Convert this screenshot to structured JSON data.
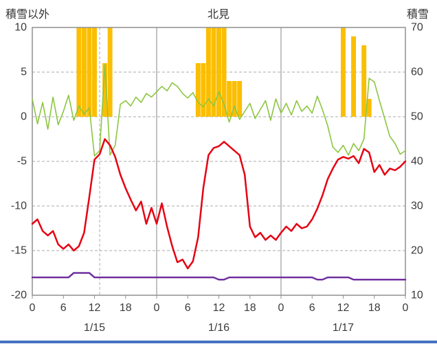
{
  "page": {
    "divider_color": "#4472C4"
  },
  "header": {
    "left_axis_title": "積雪以外",
    "station": "北見",
    "right_axis_title": "積雪"
  },
  "chart_data": {
    "type": "line",
    "title": "北見",
    "x_hours_range": [
      0,
      72
    ],
    "x_tick_hours": [
      0,
      6,
      12,
      18,
      24,
      30,
      36,
      42,
      48,
      54,
      60,
      66,
      72
    ],
    "x_tick_labels": [
      "0",
      "6",
      "12",
      "18",
      "0",
      "6",
      "12",
      "18",
      "0",
      "6",
      "12",
      "18",
      "0"
    ],
    "date_labels": [
      {
        "hour": 12,
        "label": "1/15"
      },
      {
        "hour": 36,
        "label": "1/16"
      },
      {
        "hour": 60,
        "label": "1/17"
      }
    ],
    "left_axis": {
      "title": "積雪以外",
      "ticks": [
        10,
        5,
        0,
        -5,
        -10,
        -15,
        -20
      ],
      "range": [
        -20,
        10
      ]
    },
    "right_axis": {
      "title": "積雪",
      "ticks": [
        70,
        60,
        50,
        40,
        30,
        20,
        10
      ],
      "range": [
        10,
        70
      ]
    },
    "grid": {
      "h_dashed_at": [
        5,
        0,
        -5,
        -10,
        -15
      ],
      "v_solid_at_hours": [
        24,
        48
      ],
      "v_dashed_at_hours": [
        13
      ]
    },
    "colors": {
      "grid": "#aaaaaa",
      "grid_solid": "#9a9a9a",
      "border": "#8f8f8f",
      "text": "#3a3a3a"
    },
    "series": [
      {
        "name": "orange-bars",
        "type": "bar",
        "axis": "left",
        "color": "#FBBE00",
        "values": [
          0,
          0,
          0,
          0,
          0,
          0,
          0,
          0,
          0,
          10,
          10,
          10,
          10,
          0,
          6,
          10,
          0,
          0,
          0,
          0,
          0,
          0,
          0,
          0,
          0,
          0,
          0,
          0,
          0,
          0,
          0,
          0,
          6,
          6,
          10,
          10,
          10,
          10,
          4,
          4,
          4,
          0,
          0,
          0,
          0,
          0,
          0,
          0,
          0,
          0,
          0,
          0,
          0,
          0,
          0,
          0,
          0,
          0,
          0,
          0,
          10,
          0,
          9,
          0,
          8,
          2,
          0,
          0,
          0,
          0,
          0,
          0
        ]
      },
      {
        "name": "green-line",
        "type": "line",
        "axis": "left",
        "color": "#8CC63F",
        "width": 1.6,
        "values": [
          2,
          -0.8,
          1.6,
          -1.4,
          2.2,
          -0.9,
          0.6,
          2.4,
          -0.4,
          1.2,
          0.3,
          1,
          -4.4,
          -3.8,
          5.8,
          -4.3,
          -3.2,
          1.4,
          1.8,
          1.2,
          2.2,
          1.6,
          2.6,
          2.2,
          2.8,
          3.4,
          2.9,
          3.8,
          3.4,
          2.6,
          2.1,
          2.7,
          1.6,
          1.1,
          2,
          1.2,
          2.8,
          1.4,
          -0.6,
          1.2,
          -0.3,
          0.6,
          1.5,
          -0.2,
          0.8,
          1.8,
          -0.4,
          2,
          0.4,
          1.5,
          0.2,
          1.8,
          0.6,
          1.2,
          0.4,
          2.3,
          0.8,
          -1,
          -3.4,
          -4,
          -3.2,
          -4.3,
          -3,
          -3.8,
          -2.5,
          4.3,
          3.9,
          1.8,
          -0.2,
          -2.2,
          -3,
          -4.2,
          -3.8
        ]
      },
      {
        "name": "purple-line",
        "type": "line",
        "axis": "right",
        "color": "#7030A0",
        "width": 2.5,
        "values": [
          14,
          14,
          14,
          14,
          14,
          14,
          14,
          14,
          15,
          15,
          15,
          15,
          14,
          14,
          14,
          14,
          14,
          14,
          14,
          14,
          14,
          14,
          14,
          14,
          14,
          14,
          14,
          14,
          14,
          14,
          14,
          14,
          14,
          14,
          14,
          14,
          13.5,
          13.5,
          14,
          14,
          14,
          14,
          14,
          14,
          14,
          14,
          14,
          14,
          14,
          14,
          14,
          14,
          14,
          14,
          14,
          13.5,
          13.5,
          14,
          14,
          14,
          14,
          14,
          13.5,
          13.5,
          13.5,
          13.5,
          13.5,
          13.5,
          13.5,
          13.5,
          13.5,
          13.5,
          13.5
        ]
      },
      {
        "name": "red-line",
        "type": "line",
        "axis": "left",
        "color": "#E60012",
        "width": 2.5,
        "values": [
          -12,
          -11.5,
          -12.8,
          -13.3,
          -12.8,
          -14.3,
          -14.8,
          -14.3,
          -15,
          -14.5,
          -13,
          -9,
          -4.8,
          -4.2,
          -2.5,
          -3.2,
          -4.5,
          -6.5,
          -8,
          -9.3,
          -10.5,
          -9.5,
          -12,
          -10.2,
          -12,
          -9.7,
          -12.3,
          -14.5,
          -16.3,
          -16,
          -17,
          -16.2,
          -13.5,
          -8,
          -4.3,
          -3.5,
          -3.3,
          -2.8,
          -3.3,
          -3.8,
          -4.3,
          -6.5,
          -12.3,
          -13.5,
          -13,
          -13.8,
          -13.3,
          -13.8,
          -13,
          -12.3,
          -12.8,
          -12,
          -12.5,
          -12.3,
          -11.5,
          -10.3,
          -8.8,
          -7,
          -5.8,
          -4.8,
          -4.5,
          -4.7,
          -4.4,
          -5.2,
          -3.6,
          -4,
          -6.2,
          -5.4,
          -6.5,
          -5.8,
          -6,
          -5.6,
          -5
        ]
      }
    ]
  }
}
